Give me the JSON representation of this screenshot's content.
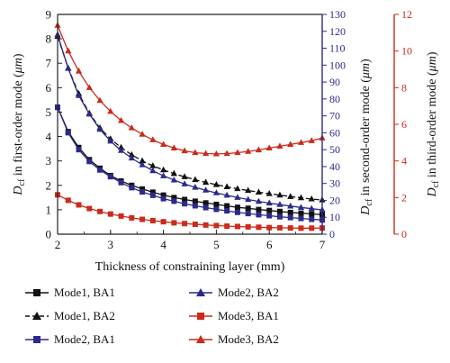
{
  "chart_data": {
    "type": "line",
    "xlabel": "Thickness of constraining layer (mm)",
    "ylabel_left": {
      "base": "D",
      "sub": "cf",
      "rest": " in first-order mode (",
      "unit": "μm",
      "close": ")"
    },
    "ylabel_mid": {
      "base": "D",
      "sub": "cf",
      "rest": " in second-order mode (",
      "unit": "μm",
      "close": ")"
    },
    "ylabel_right": {
      "base": "D",
      "sub": "cf",
      "rest": " in third-order mode (",
      "unit": "μm",
      "close": ")"
    },
    "xlim": [
      2,
      7
    ],
    "ylim_left": [
      0,
      9
    ],
    "ylim_mid": [
      0,
      130
    ],
    "ylim_right": [
      0,
      12
    ],
    "xticks": [
      2,
      3,
      4,
      5,
      6,
      7
    ],
    "yticks_left": [
      0,
      1,
      2,
      3,
      4,
      5,
      6,
      7,
      8,
      9
    ],
    "yticks_mid": [
      0,
      10,
      20,
      30,
      40,
      50,
      60,
      70,
      80,
      90,
      100,
      110,
      120,
      130
    ],
    "yticks_right": [
      0,
      2,
      4,
      6,
      8,
      10,
      12
    ],
    "axis_colors": {
      "left": "#222222",
      "mid": "#2b2a8c",
      "right": "#cc2a1a"
    },
    "legend_placement": "bottom",
    "grid": false,
    "series": [
      {
        "name": "Mode1, BA1",
        "axis": "left",
        "color": "#111111",
        "marker": "square",
        "dash": false,
        "x": [
          2.0,
          2.2,
          2.4,
          2.6,
          2.8,
          3.0,
          3.2,
          3.4,
          3.6,
          3.8,
          4.0,
          4.2,
          4.4,
          4.6,
          4.8,
          5.0,
          5.2,
          5.4,
          5.6,
          5.8,
          6.0,
          6.2,
          6.4,
          6.6,
          6.8,
          7.0
        ],
        "y": [
          5.2,
          4.2,
          3.55,
          3.05,
          2.7,
          2.4,
          2.18,
          2.0,
          1.85,
          1.72,
          1.6,
          1.5,
          1.42,
          1.35,
          1.28,
          1.22,
          1.16,
          1.1,
          1.06,
          1.01,
          0.97,
          0.93,
          0.89,
          0.86,
          0.83,
          0.8
        ]
      },
      {
        "name": "Mode1, BA2",
        "axis": "left",
        "color": "#111111",
        "marker": "triangle",
        "dash": true,
        "x": [
          2.0,
          2.2,
          2.4,
          2.6,
          2.8,
          3.0,
          3.2,
          3.4,
          3.6,
          3.8,
          4.0,
          4.2,
          4.4,
          4.6,
          4.8,
          5.0,
          5.2,
          5.4,
          5.6,
          5.8,
          6.0,
          6.2,
          6.4,
          6.6,
          6.8,
          7.0
        ],
        "y": [
          8.1,
          6.8,
          5.75,
          4.95,
          4.35,
          3.9,
          3.55,
          3.25,
          3.0,
          2.8,
          2.63,
          2.48,
          2.35,
          2.23,
          2.12,
          2.03,
          1.94,
          1.86,
          1.79,
          1.72,
          1.66,
          1.6,
          1.54,
          1.49,
          1.44,
          1.4
        ]
      },
      {
        "name": "Mode2, BA1",
        "axis": "mid",
        "color": "#2b2a8c",
        "marker": "square",
        "dash": false,
        "x": [
          2.0,
          2.2,
          2.4,
          2.6,
          2.8,
          3.0,
          3.2,
          3.4,
          3.6,
          3.8,
          4.0,
          4.2,
          4.4,
          4.6,
          4.8,
          5.0,
          5.2,
          5.4,
          5.6,
          5.8,
          6.0,
          6.2,
          6.4,
          6.6,
          6.8,
          7.0
        ],
        "y": [
          75,
          60,
          50,
          43,
          38,
          34,
          30.5,
          27.5,
          25,
          23,
          21,
          19.5,
          18,
          16.8,
          15.7,
          14.7,
          13.8,
          12.9,
          12.2,
          11.5,
          10.9,
          10.3,
          9.8,
          9.3,
          8.8,
          8.4
        ]
      },
      {
        "name": "Mode2, BA2",
        "axis": "mid",
        "color": "#2b2a8c",
        "marker": "triangle",
        "dash": false,
        "x": [
          2.0,
          2.2,
          2.4,
          2.6,
          2.8,
          3.0,
          3.2,
          3.4,
          3.6,
          3.8,
          4.0,
          4.2,
          4.4,
          4.6,
          4.8,
          5.0,
          5.2,
          5.4,
          5.6,
          5.8,
          6.0,
          6.2,
          6.4,
          6.6,
          6.8,
          7.0
        ],
        "y": [
          118,
          98,
          82,
          71,
          62,
          55,
          49.5,
          45,
          41,
          37.5,
          34.5,
          32,
          29.7,
          27.7,
          26,
          24.4,
          23,
          21.7,
          20.5,
          19.4,
          18.4,
          17.5,
          16.6,
          15.8,
          15.1,
          14.4
        ]
      },
      {
        "name": "Mode3, BA1",
        "axis": "right",
        "color": "#cc2a1a",
        "marker": "square",
        "dash": false,
        "x": [
          2.0,
          2.2,
          2.4,
          2.6,
          2.8,
          3.0,
          3.2,
          3.4,
          3.6,
          3.8,
          4.0,
          4.2,
          4.4,
          4.6,
          4.8,
          5.0,
          5.2,
          5.4,
          5.6,
          5.8,
          6.0,
          6.2,
          6.4,
          6.6,
          6.8,
          7.0
        ],
        "y": [
          2.15,
          1.85,
          1.6,
          1.4,
          1.24,
          1.1,
          0.99,
          0.89,
          0.81,
          0.74,
          0.68,
          0.62,
          0.58,
          0.54,
          0.5,
          0.47,
          0.44,
          0.42,
          0.4,
          0.38,
          0.36,
          0.35,
          0.34,
          0.33,
          0.33,
          0.34
        ]
      },
      {
        "name": "Mode3, BA2",
        "axis": "right",
        "color": "#cc2a1a",
        "marker": "triangle",
        "dash": false,
        "x": [
          2.0,
          2.2,
          2.4,
          2.6,
          2.8,
          3.0,
          3.2,
          3.4,
          3.6,
          3.8,
          4.0,
          4.2,
          4.4,
          4.6,
          4.8,
          5.0,
          5.2,
          5.4,
          5.6,
          5.8,
          6.0,
          6.2,
          6.4,
          6.6,
          6.8,
          7.0
        ],
        "y": [
          11.4,
          10.0,
          8.9,
          8.0,
          7.3,
          6.7,
          6.2,
          5.8,
          5.45,
          5.15,
          4.9,
          4.7,
          4.55,
          4.45,
          4.4,
          4.38,
          4.4,
          4.45,
          4.52,
          4.6,
          4.7,
          4.8,
          4.9,
          5.0,
          5.1,
          5.25
        ]
      }
    ]
  },
  "legend": [
    {
      "label": "Mode1, BA1"
    },
    {
      "label": "Mode2, BA2"
    },
    {
      "label": "Mode1, BA2"
    },
    {
      "label": "Mode3, BA1"
    },
    {
      "label": "Mode2, BA1"
    },
    {
      "label": "Mode3, BA2"
    }
  ]
}
